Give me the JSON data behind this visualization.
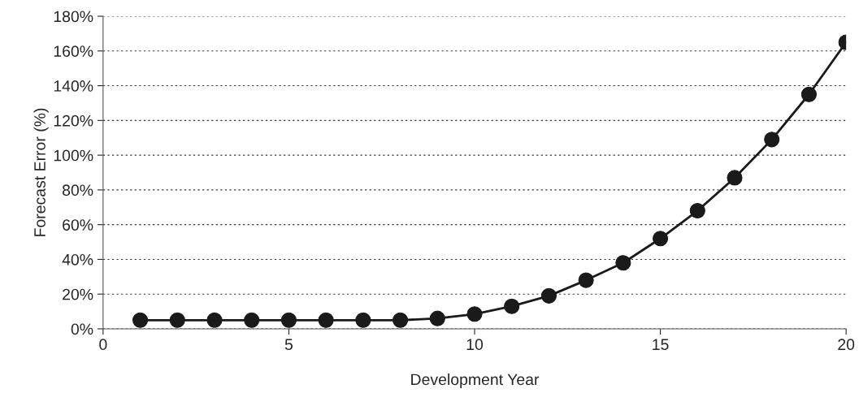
{
  "chart_data": {
    "type": "line",
    "xlabel": "Development Year",
    "ylabel": "Forecast Error (%)",
    "x": [
      1,
      2,
      3,
      4,
      5,
      6,
      7,
      8,
      9,
      10,
      11,
      12,
      13,
      14,
      15,
      16,
      17,
      18,
      19,
      20
    ],
    "series": [
      {
        "color": "#1a1a1a",
        "values": [
          5,
          5,
          5,
          5,
          5,
          5,
          5,
          5,
          6,
          8.5,
          13,
          19,
          28,
          38,
          52,
          68,
          87,
          109,
          135,
          165
        ]
      }
    ],
    "xlim": [
      0,
      20
    ],
    "xticks": [
      0,
      5,
      10,
      15,
      20
    ],
    "ylim": [
      0,
      180
    ],
    "yticks": [
      {
        "value": 0,
        "label": "0%"
      },
      {
        "value": 20,
        "label": "20%"
      },
      {
        "value": 40,
        "label": "40%"
      },
      {
        "value": 60,
        "label": "60%"
      },
      {
        "value": 80,
        "label": "80%"
      },
      {
        "value": 100,
        "label": "100%"
      },
      {
        "value": 120,
        "label": "120%"
      },
      {
        "value": 140,
        "label": "140%"
      },
      {
        "value": 160,
        "label": "160%"
      },
      {
        "value": 180,
        "label": "180%"
      }
    ],
    "grid": "y",
    "marker": "circle",
    "line_style": "solid",
    "legend": false
  }
}
